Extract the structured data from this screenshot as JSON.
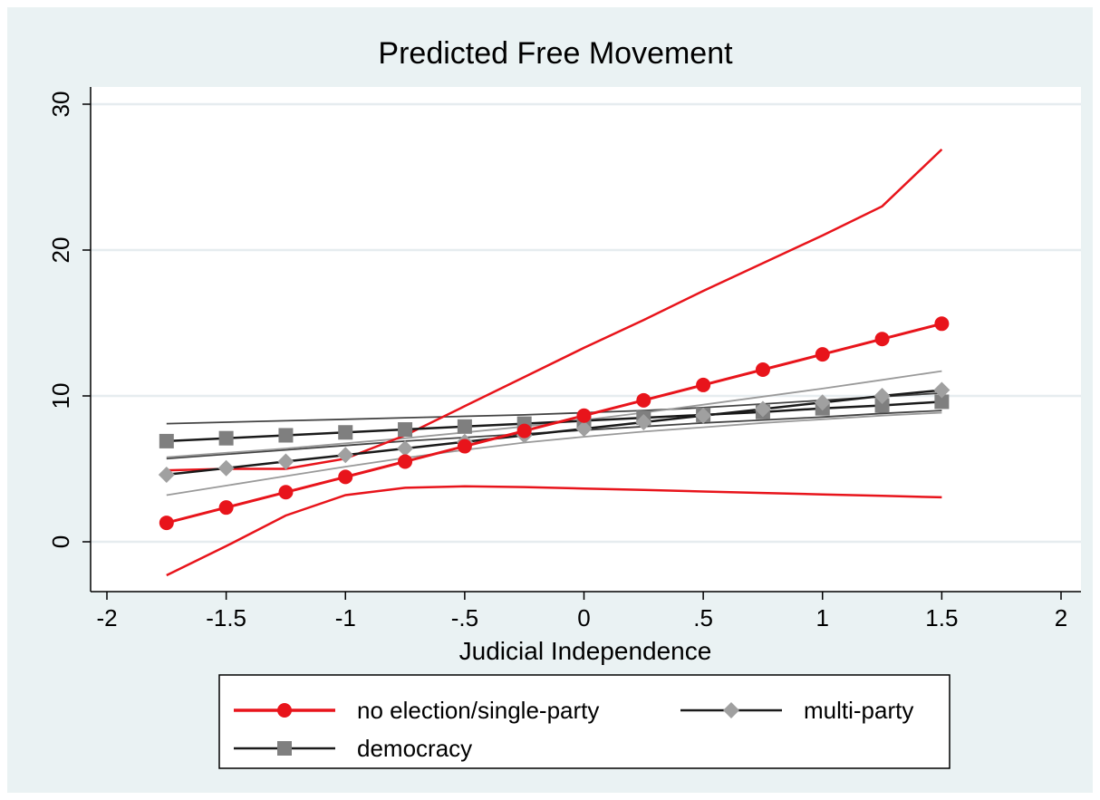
{
  "chart_data": {
    "type": "line",
    "title": "Predicted Free Movement",
    "xlabel": "Judicial Independence",
    "ylabel": "",
    "xlim": [
      -2,
      2
    ],
    "ylim": [
      -3.5,
      30.5
    ],
    "xticks": [
      -2,
      -1.5,
      -1,
      -0.5,
      0,
      0.5,
      1,
      1.5,
      2
    ],
    "xtick_labels": [
      "-2",
      "-1.5",
      "-1",
      "-.5",
      "0",
      ".5",
      "1",
      "1.5",
      "2"
    ],
    "yticks": [
      0,
      10,
      20,
      30
    ],
    "ytick_labels": [
      "0",
      "10",
      "20",
      "30"
    ],
    "grid": true,
    "legend_position": "bottom",
    "x": [
      -1.75,
      -1.5,
      -1.25,
      -1,
      -0.75,
      -0.5,
      -0.25,
      0,
      0.25,
      0.5,
      0.75,
      1,
      1.25,
      1.5
    ],
    "series": [
      {
        "name": "no election/single-party",
        "color": "#e8141b",
        "marker": "circle",
        "values": [
          1.3,
          2.35,
          3.4,
          4.45,
          5.5,
          6.55,
          7.6,
          8.65,
          9.7,
          10.75,
          11.8,
          12.85,
          13.9,
          14.95
        ],
        "ci_lower": [
          -2.3,
          -0.3,
          1.8,
          3.2,
          3.7,
          3.8,
          3.75,
          3.65,
          3.55,
          3.45,
          3.35,
          3.25,
          3.15,
          3.05
        ],
        "ci_upper": [
          4.9,
          5.0,
          5.0,
          5.7,
          7.3,
          9.3,
          11.3,
          13.3,
          15.2,
          17.2,
          19.1,
          21.0,
          23.0,
          26.9
        ]
      },
      {
        "name": "multi-party",
        "color": "#a0a0a0",
        "line_color": "#1a1a1a",
        "marker": "diamond",
        "values": [
          4.6,
          5.05,
          5.5,
          5.95,
          6.4,
          6.85,
          7.3,
          7.75,
          8.2,
          8.65,
          9.1,
          9.55,
          10.0,
          10.4
        ],
        "ci_lower": [
          3.2,
          3.85,
          4.5,
          5.15,
          5.75,
          6.3,
          6.8,
          7.2,
          7.55,
          7.85,
          8.15,
          8.4,
          8.65,
          8.85
        ],
        "ci_upper": [
          5.8,
          6.1,
          6.4,
          6.75,
          7.1,
          7.5,
          7.9,
          8.35,
          8.85,
          9.4,
          9.95,
          10.5,
          11.1,
          11.7
        ]
      },
      {
        "name": "democracy",
        "color": "#7f7f7f",
        "line_color": "#1a1a1a",
        "marker": "square",
        "values": [
          6.9,
          7.1,
          7.3,
          7.5,
          7.7,
          7.9,
          8.1,
          8.3,
          8.5,
          8.7,
          8.9,
          9.15,
          9.35,
          9.6
        ],
        "ci_lower": [
          5.7,
          6.0,
          6.3,
          6.6,
          6.9,
          7.15,
          7.4,
          7.65,
          7.9,
          8.15,
          8.35,
          8.55,
          8.8,
          9.0
        ],
        "ci_upper": [
          8.1,
          8.2,
          8.3,
          8.4,
          8.5,
          8.6,
          8.7,
          8.85,
          9.0,
          9.2,
          9.45,
          9.7,
          9.95,
          10.2
        ]
      }
    ]
  }
}
